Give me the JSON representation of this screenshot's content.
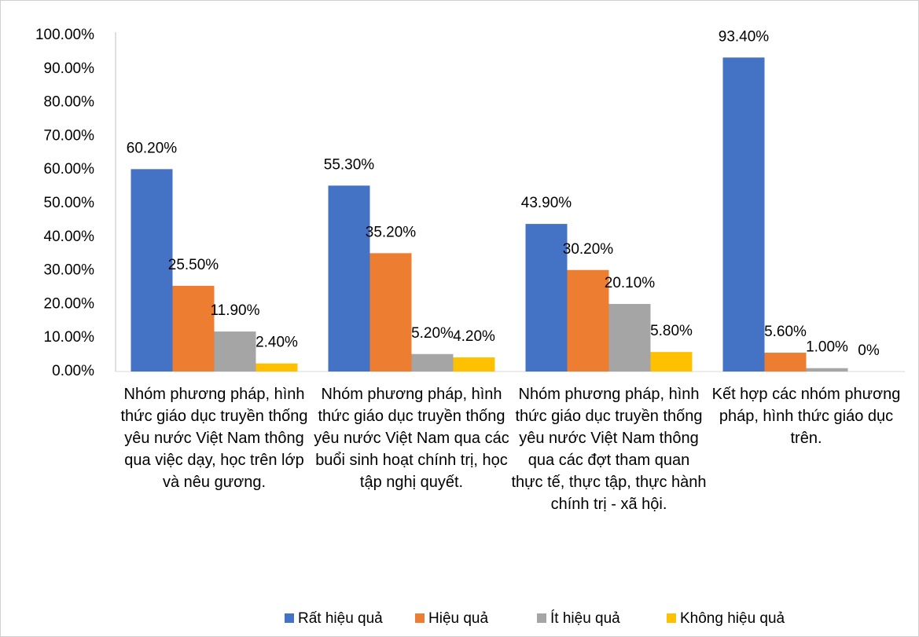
{
  "chart_data": {
    "type": "bar",
    "categories": [
      "Nhóm phương pháp, hình thức giáo dục truyền thống yêu nước Việt Nam thông qua việc dạy, học trên lớp và nêu gương.",
      "Nhóm phương pháp, hình thức giáo dục truyền thống yêu nước Việt Nam qua các buổi sinh hoạt chính trị, học tập nghị quyết.",
      "Nhóm phương pháp, hình thức giáo dục truyền thống yêu nước Việt Nam thông qua các đợt tham quan thực tế, thực tập, thực hành chính trị - xã hội.",
      "Kết hợp các nhóm phương pháp, hình thức giáo dục trên."
    ],
    "series": [
      {
        "name": "Rất hiệu quả",
        "color": "#4472c4",
        "values": [
          60.2,
          55.3,
          43.9,
          93.4
        ],
        "value_labels": [
          "60.20%",
          "55.30%",
          "43.90%",
          "93.40%"
        ]
      },
      {
        "name": "Hiệu quả",
        "color": "#ed7d31",
        "values": [
          25.5,
          35.2,
          30.2,
          5.6
        ],
        "value_labels": [
          "25.50%",
          "35.20%",
          "30.20%",
          "5.60%"
        ]
      },
      {
        "name": "Ít hiệu quả",
        "color": "#a5a5a5",
        "values": [
          11.9,
          5.2,
          20.1,
          1.0
        ],
        "value_labels": [
          "11.90%",
          "5.20%",
          "20.10%",
          "1.00%"
        ]
      },
      {
        "name": "Không hiệu quả",
        "color": "#ffc000",
        "values": [
          2.4,
          4.2,
          5.8,
          0
        ],
        "value_labels": [
          "2.40%",
          "4.20%",
          "5.80%",
          "0%"
        ]
      }
    ],
    "ylim": [
      0,
      100
    ],
    "yticks": [
      {
        "value": 0,
        "label": "0.00%"
      },
      {
        "value": 10,
        "label": "10.00%"
      },
      {
        "value": 20,
        "label": "20.00%"
      },
      {
        "value": 30,
        "label": "30.00%"
      },
      {
        "value": 40,
        "label": "40.00%"
      },
      {
        "value": 50,
        "label": "50.00%"
      },
      {
        "value": 60,
        "label": "60.00%"
      },
      {
        "value": 70,
        "label": "70.00%"
      },
      {
        "value": 80,
        "label": "80.00%"
      },
      {
        "value": 90,
        "label": "90.00%"
      },
      {
        "value": 100,
        "label": "100.00%"
      }
    ],
    "grid": false,
    "legend": "bottom"
  }
}
